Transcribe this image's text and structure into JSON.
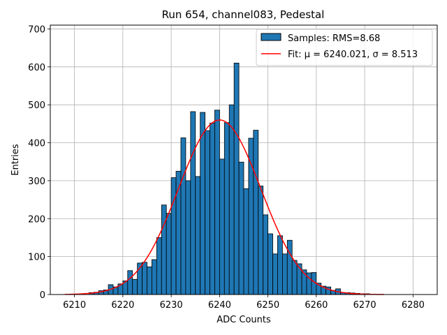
{
  "chart_data": {
    "type": "bar",
    "title": "Run 654, channel083, Pedestal",
    "xlabel": "ADC Counts",
    "ylabel": "Entries",
    "xlim": [
      6205,
      6285
    ],
    "ylim": [
      0,
      710
    ],
    "xticks": [
      6210,
      6220,
      6230,
      6240,
      6250,
      6260,
      6270,
      6280
    ],
    "yticks": [
      0,
      100,
      200,
      300,
      400,
      500,
      600,
      700
    ],
    "grid": true,
    "legend_position": "top-right",
    "histogram": {
      "name": "Samples: RMS=8.68",
      "bin_width": 1,
      "bin_starts": [
        6213,
        6214,
        6215,
        6216,
        6217,
        6218,
        6219,
        6220,
        6221,
        6222,
        6223,
        6224,
        6225,
        6226,
        6227,
        6228,
        6229,
        6230,
        6231,
        6232,
        6233,
        6234,
        6235,
        6236,
        6237,
        6238,
        6239,
        6240,
        6241,
        6242,
        6243,
        6244,
        6245,
        6246,
        6247,
        6248,
        6249,
        6250,
        6251,
        6252,
        6253,
        6254,
        6255,
        6256,
        6257,
        6258,
        6259,
        6260,
        6261,
        6262,
        6263,
        6264,
        6265,
        6266,
        6267,
        6268,
        6269,
        6270
      ],
      "counts": [
        5,
        6,
        10,
        12,
        26,
        20,
        28,
        36,
        63,
        40,
        83,
        85,
        73,
        92,
        150,
        236,
        214,
        308,
        325,
        413,
        300,
        482,
        311,
        480,
        432,
        452,
        486,
        357,
        453,
        500,
        610,
        349,
        279,
        412,
        433,
        286,
        210,
        160,
        107,
        155,
        107,
        143,
        90,
        81,
        65,
        57,
        58,
        30,
        22,
        20,
        11,
        15,
        5,
        5,
        4,
        3,
        2,
        2
      ],
      "color": "#1f77b4",
      "edge_color": "#000000"
    },
    "fit": {
      "name": "Fit: μ = 6240.021, σ = 8.513",
      "mu": 6240.021,
      "sigma": 8.513,
      "amplitude": 460,
      "x_range": [
        6208,
        6274
      ],
      "color": "#ff0000"
    }
  }
}
